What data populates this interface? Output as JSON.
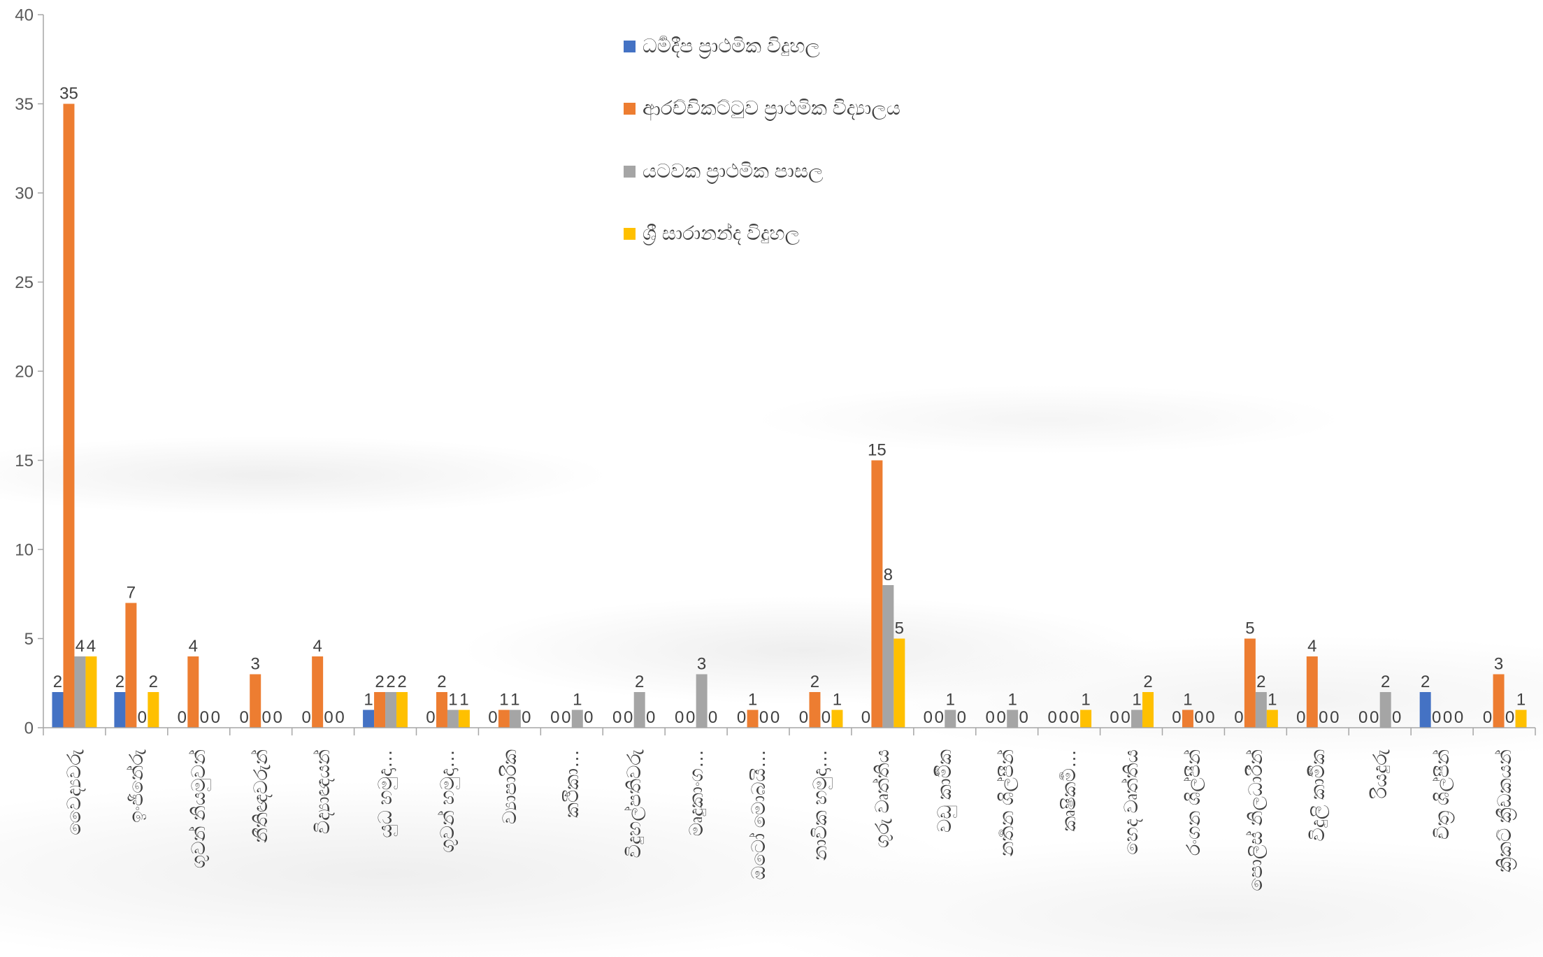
{
  "chart_data": {
    "type": "bar",
    "title": "",
    "xlabel": "",
    "ylabel": "",
    "ylim": [
      0,
      40
    ],
    "yticks": [
      0,
      5,
      10,
      15,
      20,
      25,
      30,
      35,
      40
    ],
    "ytick_labels": [
      "0",
      "5",
      "10",
      "15",
      "20",
      "25",
      "30",
      "35",
      "40"
    ],
    "grid": false,
    "legend_position": "top-center",
    "data_labels": true,
    "categories": [
      "වෛද්‍යවරු",
      "ඉංජිනේරු",
      "ගුවන් නියමුවන්",
      "නීතිඥවරුන්",
      "විද්‍යාඥයන්",
      "යුධ හමුදා…",
      "ගුවන් හමුදා…",
      "ව්‍යාපාරික",
      "කථිකා…",
      "විදුහල්පතිවරු",
      "මෘදුකාංග…",
      "ඔටෝ මොබයි…",
      "නාවික හමුදා…",
      "ගුරු වෘත්තිය",
      "වඩු කාර්‍මික",
      "නර්‍තන ශිල්පීන්",
      "කෘෂිකර්‍ම…",
      "හෙද වෘත්තිය",
      "රංගන ශිල්පීන්",
      "පොලිස් නිලධාරීන්",
      "විදුලි කාර්‍මික",
      "රියදුරු",
      "චිත්‍ර ශිල්පීන්",
      "ක්‍රිකට් ක්‍රීඩකයන්"
    ],
    "series": [
      {
        "name": "ධර්‍මදීප ප්‍රාථමික විදුහල",
        "color": "#4472C4",
        "values": [
          2,
          2,
          0,
          0,
          0,
          1,
          0,
          0,
          0,
          0,
          0,
          0,
          0,
          0,
          0,
          0,
          0,
          0,
          0,
          0,
          0,
          0,
          2,
          0
        ]
      },
      {
        "name": "ආරච්චිකට්ටුව ප්‍රාථමික විද්‍යාලය",
        "color": "#ED7D31",
        "values": [
          35,
          7,
          4,
          3,
          4,
          2,
          2,
          1,
          0,
          0,
          0,
          1,
          2,
          15,
          0,
          0,
          0,
          0,
          1,
          5,
          4,
          0,
          0,
          3
        ]
      },
      {
        "name": "යටවක ප්‍රාථමික පාසල",
        "color": "#A5A5A5",
        "values": [
          4,
          0,
          0,
          0,
          0,
          2,
          1,
          1,
          1,
          2,
          3,
          0,
          0,
          8,
          1,
          1,
          0,
          1,
          0,
          2,
          0,
          2,
          0,
          0
        ]
      },
      {
        "name": "ශ්‍රී සාරානන්ද විදුහල",
        "color": "#FFC000",
        "values": [
          4,
          2,
          0,
          0,
          0,
          2,
          1,
          0,
          0,
          0,
          0,
          0,
          1,
          5,
          0,
          0,
          1,
          2,
          0,
          1,
          0,
          0,
          0,
          1
        ]
      }
    ]
  },
  "colors": {
    "axis": "#A6A6A6",
    "text": "#404040",
    "tick_text": "#595959",
    "background": "#FFFFFF"
  }
}
